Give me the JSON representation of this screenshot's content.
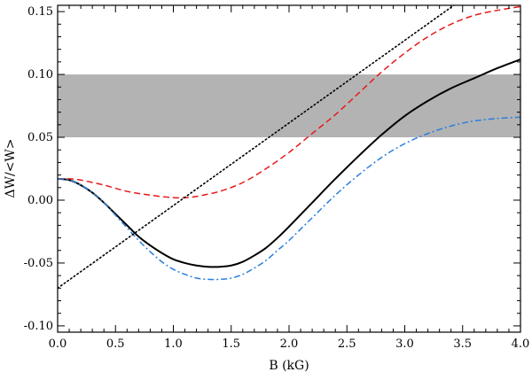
{
  "chart_data": {
    "type": "line",
    "title": "",
    "xlabel": "B (kG)",
    "ylabel": "ΔW/<W>",
    "xlim": [
      0.0,
      4.0
    ],
    "ylim": [
      -0.105,
      0.155
    ],
    "xticks": [
      0.0,
      0.5,
      1.0,
      1.5,
      2.0,
      2.5,
      3.0,
      3.5,
      4.0
    ],
    "xtick_labels": [
      "0.0",
      "0.5",
      "1.0",
      "1.5",
      "2.0",
      "2.5",
      "3.0",
      "3.5",
      "4.0"
    ],
    "yticks": [
      -0.1,
      -0.05,
      0.0,
      0.05,
      0.1,
      0.15
    ],
    "ytick_labels": [
      "-0.10",
      "-0.05",
      "0.00",
      "0.05",
      "0.10",
      "0.15"
    ],
    "grid": false,
    "shaded_band": {
      "y_range": [
        0.05,
        0.1
      ],
      "color": "#b3b3b3"
    },
    "series": [
      {
        "style": "solid",
        "color": "#000000",
        "x": [
          0.0,
          0.1,
          0.2,
          0.3,
          0.4,
          0.5,
          0.6,
          0.7,
          0.8,
          0.9,
          1.0,
          1.1,
          1.2,
          1.3,
          1.4,
          1.5,
          1.6,
          1.7,
          1.8,
          1.9,
          2.0,
          2.2,
          2.4,
          2.6,
          2.8,
          3.0,
          3.2,
          3.4,
          3.6,
          3.8,
          4.0
        ],
        "y": [
          0.017,
          0.016,
          0.012,
          0.006,
          -0.002,
          -0.011,
          -0.02,
          -0.029,
          -0.036,
          -0.042,
          -0.047,
          -0.05,
          -0.052,
          -0.053,
          -0.053,
          -0.052,
          -0.049,
          -0.044,
          -0.038,
          -0.03,
          -0.021,
          -0.002,
          0.017,
          0.035,
          0.052,
          0.067,
          0.079,
          0.089,
          0.097,
          0.105,
          0.112
        ]
      },
      {
        "style": "dashed",
        "color": "#e8191a",
        "x": [
          0.0,
          0.1,
          0.2,
          0.4,
          0.6,
          0.8,
          1.0,
          1.1,
          1.2,
          1.4,
          1.6,
          1.8,
          2.0,
          2.2,
          2.4,
          2.6,
          2.8,
          3.0,
          3.2,
          3.4,
          3.6,
          3.8,
          4.0
        ],
        "y": [
          0.017,
          0.017,
          0.016,
          0.012,
          0.007,
          0.004,
          0.002,
          0.002,
          0.003,
          0.007,
          0.014,
          0.025,
          0.038,
          0.053,
          0.068,
          0.085,
          0.102,
          0.117,
          0.13,
          0.14,
          0.147,
          0.151,
          0.154
        ]
      },
      {
        "style": "dashdot",
        "color": "#2b7fdc",
        "x": [
          0.0,
          0.1,
          0.2,
          0.3,
          0.4,
          0.5,
          0.6,
          0.7,
          0.8,
          0.9,
          1.0,
          1.1,
          1.2,
          1.3,
          1.4,
          1.5,
          1.6,
          1.7,
          1.8,
          1.9,
          2.0,
          2.2,
          2.4,
          2.6,
          2.8,
          3.0,
          3.2,
          3.4,
          3.6,
          3.8,
          4.0
        ],
        "y": [
          0.017,
          0.016,
          0.012,
          0.006,
          -0.002,
          -0.012,
          -0.022,
          -0.032,
          -0.041,
          -0.049,
          -0.055,
          -0.059,
          -0.062,
          -0.063,
          -0.063,
          -0.062,
          -0.059,
          -0.054,
          -0.048,
          -0.04,
          -0.032,
          -0.014,
          0.004,
          0.02,
          0.034,
          0.045,
          0.053,
          0.059,
          0.063,
          0.065,
          0.066
        ]
      },
      {
        "style": "dotted",
        "color": "#000000",
        "x": [
          0.0,
          3.5
        ],
        "y": [
          -0.07,
          0.16
        ]
      }
    ]
  }
}
